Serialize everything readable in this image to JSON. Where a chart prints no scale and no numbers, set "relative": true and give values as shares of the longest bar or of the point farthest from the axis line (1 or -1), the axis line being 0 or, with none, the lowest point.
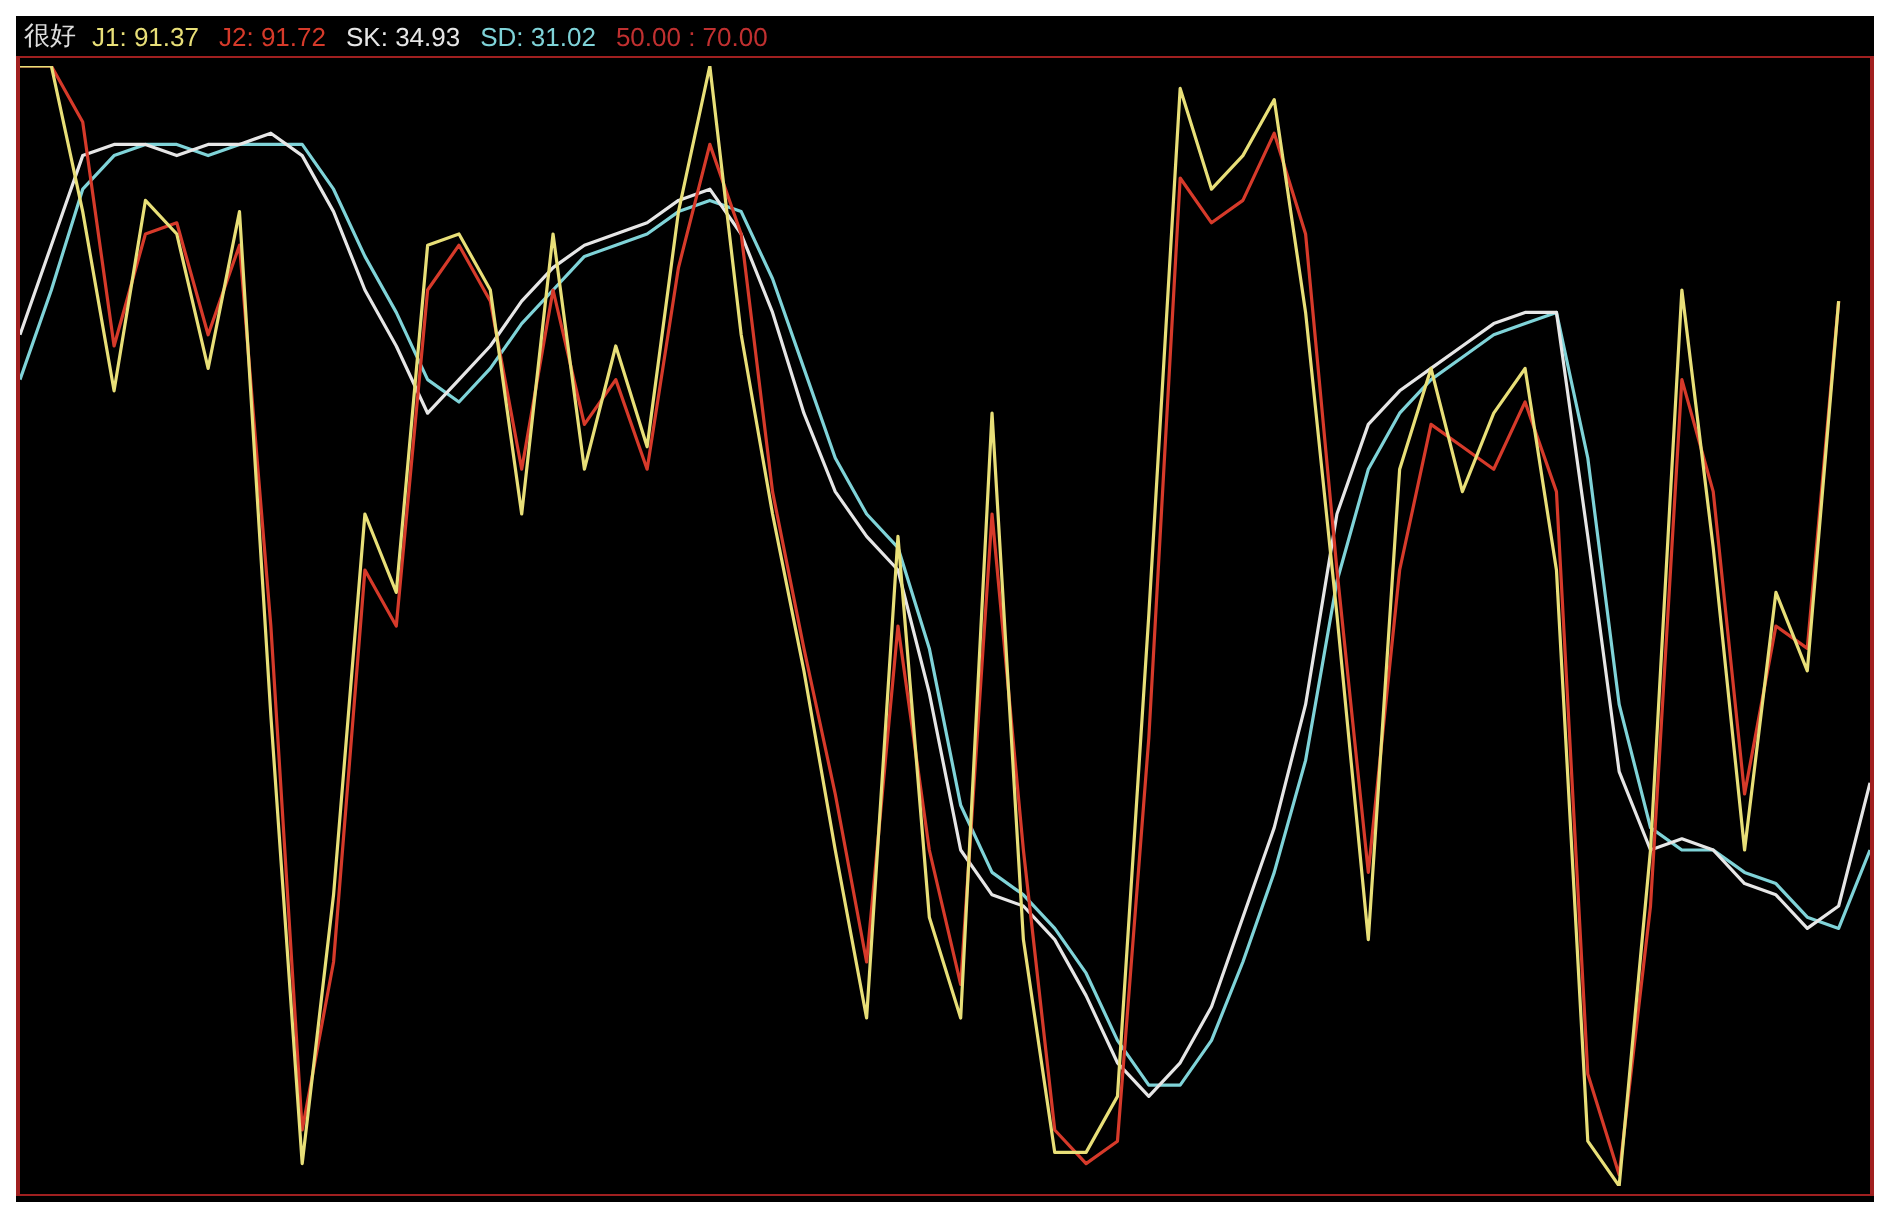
{
  "chart_data": {
    "type": "line",
    "title": "很好",
    "relative": true,
    "legend": "top left",
    "marker": "none",
    "annotations": [
      "50.00 : 70.00"
    ],
    "categories": [
      null,
      null,
      null,
      null,
      null,
      null,
      null,
      null,
      null,
      null,
      null,
      null,
      null,
      null,
      null,
      null,
      null,
      null,
      null,
      null,
      null,
      null,
      null,
      null,
      null,
      null,
      null,
      null,
      null,
      null,
      null,
      null,
      null,
      null,
      null,
      null,
      null,
      null,
      null,
      null,
      null,
      null,
      null,
      null,
      null,
      null,
      null,
      null,
      null,
      null,
      null,
      null,
      null,
      null,
      null,
      null,
      null,
      null,
      null,
      null
    ],
    "series": [
      {
        "name": "J1: 91.37",
        "color": "#e8df78",
        "values": [
          1.0,
          1.0,
          0.87,
          0.71,
          0.88,
          0.85,
          0.73,
          0.87,
          0.42,
          0.02,
          0.26,
          0.6,
          0.53,
          0.84,
          0.85,
          0.8,
          0.6,
          0.85,
          0.64,
          0.75,
          0.66,
          0.87,
          1.0,
          0.76,
          0.6,
          0.46,
          0.3,
          0.15,
          0.58,
          0.24,
          0.15,
          0.69,
          0.22,
          0.03,
          0.03,
          0.08,
          0.51,
          0.98,
          0.89,
          0.92,
          0.97,
          0.78,
          0.51,
          0.22,
          0.64,
          0.73,
          0.62,
          0.69,
          0.73,
          0.55,
          0.04,
          0.0,
          0.3,
          0.8,
          0.57,
          0.3,
          0.53,
          0.46,
          0.79,
          null
        ]
      },
      {
        "name": "J2: 91.72",
        "color": "#d63a2a",
        "values": [
          1.0,
          1.0,
          0.95,
          0.75,
          0.85,
          0.86,
          0.76,
          0.84,
          0.5,
          0.05,
          0.2,
          0.55,
          0.5,
          0.8,
          0.84,
          0.79,
          0.64,
          0.8,
          0.68,
          0.72,
          0.64,
          0.82,
          0.93,
          0.85,
          0.62,
          0.48,
          0.35,
          0.2,
          0.5,
          0.3,
          0.18,
          0.6,
          0.3,
          0.05,
          0.02,
          0.04,
          0.4,
          0.9,
          0.86,
          0.88,
          0.94,
          0.85,
          0.55,
          0.28,
          0.55,
          0.68,
          0.66,
          0.64,
          0.7,
          0.62,
          0.1,
          0.01,
          0.25,
          0.72,
          0.62,
          0.35,
          0.5,
          0.48,
          0.79,
          null
        ]
      },
      {
        "name": "SK: 34.93",
        "color": "#e6e6e6",
        "values": [
          0.76,
          0.84,
          0.92,
          0.93,
          0.93,
          0.92,
          0.93,
          0.93,
          0.94,
          0.92,
          0.87,
          0.8,
          0.75,
          0.69,
          0.72,
          0.75,
          0.79,
          0.82,
          0.84,
          0.85,
          0.86,
          0.88,
          0.89,
          0.85,
          0.78,
          0.69,
          0.62,
          0.58,
          0.55,
          0.44,
          0.3,
          0.26,
          0.25,
          0.22,
          0.17,
          0.11,
          0.08,
          0.11,
          0.16,
          0.24,
          0.32,
          0.43,
          0.6,
          0.68,
          0.71,
          0.73,
          0.75,
          0.77,
          0.78,
          0.78,
          0.58,
          0.37,
          0.3,
          0.31,
          0.3,
          0.27,
          0.26,
          0.23,
          0.25,
          0.36
        ]
      },
      {
        "name": "SD: 31.02",
        "color": "#7fd3d8",
        "values": [
          0.72,
          0.8,
          0.89,
          0.92,
          0.93,
          0.93,
          0.92,
          0.93,
          0.93,
          0.93,
          0.89,
          0.83,
          0.78,
          0.72,
          0.7,
          0.73,
          0.77,
          0.8,
          0.83,
          0.84,
          0.85,
          0.87,
          0.88,
          0.87,
          0.81,
          0.73,
          0.65,
          0.6,
          0.57,
          0.48,
          0.34,
          0.28,
          0.26,
          0.23,
          0.19,
          0.13,
          0.09,
          0.09,
          0.13,
          0.2,
          0.28,
          0.38,
          0.54,
          0.64,
          0.69,
          0.72,
          0.74,
          0.76,
          0.77,
          0.78,
          0.65,
          0.43,
          0.32,
          0.3,
          0.3,
          0.28,
          0.27,
          0.24,
          0.23,
          0.3
        ]
      }
    ]
  }
}
